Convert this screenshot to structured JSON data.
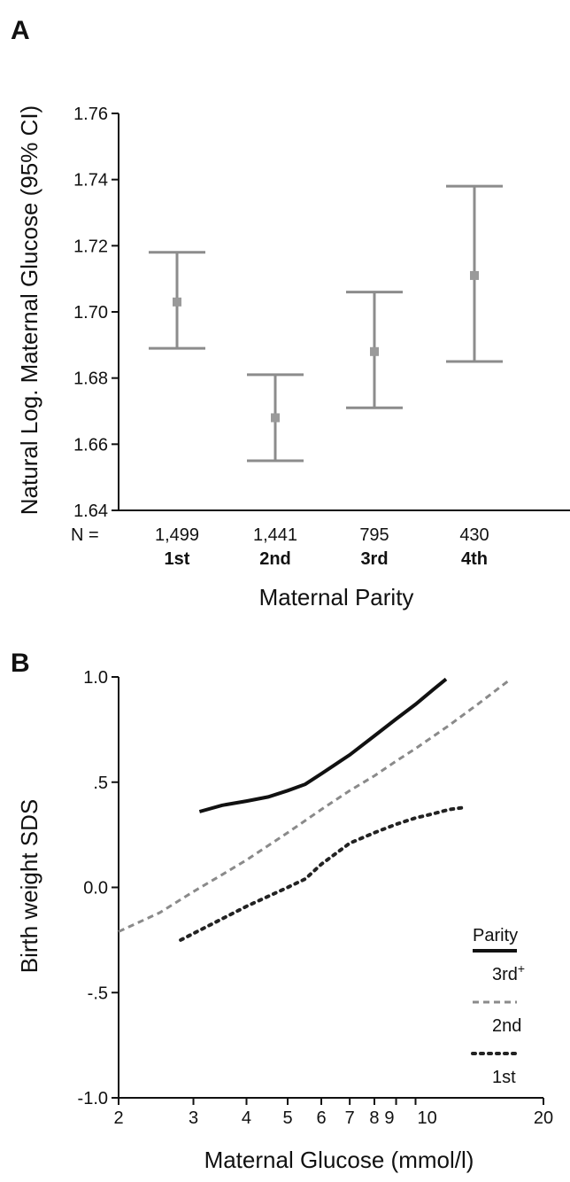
{
  "chart_data": [
    {
      "panel": "A",
      "type": "scatter",
      "ylabel": "Natural Log. Maternal Glucose (95% CI)",
      "xlabel": "Maternal Parity",
      "n_prefix": "N =",
      "ylim": [
        1.64,
        1.76
      ],
      "yticks": [
        "1.64",
        "1.66",
        "1.68",
        "1.70",
        "1.72",
        "1.74",
        "1.76"
      ],
      "ytick_values": [
        1.64,
        1.66,
        1.68,
        1.7,
        1.72,
        1.74,
        1.76
      ],
      "points": [
        {
          "category": "1st",
          "n": "1,499",
          "mean": 1.703,
          "lower": 1.689,
          "upper": 1.718
        },
        {
          "category": "2nd",
          "n": "1,441",
          "mean": 1.668,
          "lower": 1.655,
          "upper": 1.681
        },
        {
          "category": "3rd",
          "n": "795",
          "mean": 1.688,
          "lower": 1.671,
          "upper": 1.706
        },
        {
          "category": "4th",
          "n": "430",
          "mean": 1.711,
          "lower": 1.685,
          "upper": 1.738
        }
      ]
    },
    {
      "panel": "B",
      "type": "line",
      "ylabel": "Birth weight SDS",
      "xlabel": "Maternal Glucose (mmol/l)",
      "x_scale": "log",
      "xlim": [
        2,
        20
      ],
      "ylim": [
        -1.0,
        1.0
      ],
      "xticks": [
        "2",
        "3",
        "4",
        "5",
        "6",
        "7",
        "8",
        "9",
        "10",
        "20"
      ],
      "xtick_values": [
        2,
        3,
        4,
        5,
        6,
        7,
        8,
        9,
        10,
        20
      ],
      "yticks": [
        "-1.0",
        "-.5",
        "0.0",
        ".5",
        "1.0"
      ],
      "ytick_values": [
        -1.0,
        -0.5,
        0.0,
        0.5,
        1.0
      ],
      "legend_title": "Parity",
      "legend_position": "bottom-right",
      "series": [
        {
          "name": "3rd",
          "name_sup": "+",
          "style": "solid",
          "color": "#111111",
          "x": [
            3.1,
            3.5,
            4.0,
            4.5,
            5.0,
            5.5,
            6.0,
            7.0,
            8.0,
            9.0,
            10.0,
            11.0,
            11.8
          ],
          "y": [
            0.36,
            0.39,
            0.41,
            0.43,
            0.46,
            0.49,
            0.54,
            0.63,
            0.72,
            0.8,
            0.87,
            0.94,
            0.99
          ]
        },
        {
          "name": "2nd",
          "style": "dashed",
          "color": "#8a8a8a",
          "x": [
            2.0,
            2.5,
            3.0,
            3.5,
            4.0,
            5.0,
            6.0,
            7.0,
            8.0,
            9.0,
            10.0,
            12.0,
            14.0,
            16.5
          ],
          "y": [
            -0.21,
            -0.12,
            -0.02,
            0.06,
            0.13,
            0.26,
            0.37,
            0.46,
            0.53,
            0.6,
            0.66,
            0.77,
            0.87,
            0.98
          ]
        },
        {
          "name": "1st",
          "style": "dotted",
          "color": "#222222",
          "x": [
            2.8,
            3.5,
            4.0,
            5.0,
            5.5,
            6.0,
            7.0,
            8.0,
            9.0,
            10.0,
            11.0,
            12.0,
            13.0
          ],
          "y": [
            -0.25,
            -0.15,
            -0.09,
            0.0,
            0.04,
            0.11,
            0.21,
            0.26,
            0.3,
            0.33,
            0.35,
            0.37,
            0.38
          ]
        }
      ]
    }
  ]
}
